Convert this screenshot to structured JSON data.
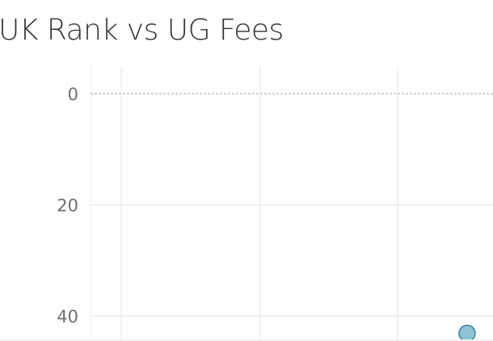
{
  "chart_data": {
    "type": "scatter",
    "title": "UK Rank vs UG Fees",
    "xlabel": "",
    "ylabel": "",
    "y_axis": {
      "reversed": true,
      "ticks": [
        0,
        20,
        40
      ],
      "tick_labels": [
        "0",
        "20",
        "40"
      ]
    },
    "grid": true,
    "reference_line": {
      "y": 0,
      "style": "dashed"
    },
    "points": [
      {
        "y": 44,
        "color": "#7ab8cf"
      }
    ]
  }
}
